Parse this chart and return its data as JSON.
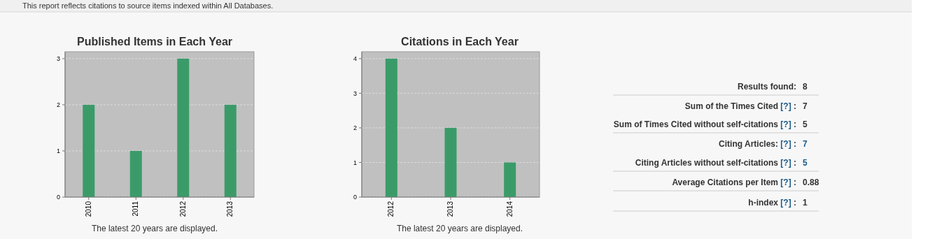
{
  "chart_data": [
    {
      "type": "bar",
      "title": "Published Items in Each Year",
      "categories": [
        "2010",
        "2011",
        "2012",
        "2013"
      ],
      "values": [
        2,
        1,
        3,
        2
      ],
      "color": "#3a9b69",
      "ylim": [
        0,
        3.15
      ],
      "yticks": [
        0,
        1,
        2,
        3
      ],
      "grid": "y",
      "annotations": [
        "The latest 20 years are displayed."
      ]
    },
    {
      "type": "bar",
      "title": "Citations in Each Year",
      "categories": [
        "2012",
        "2013",
        "2014"
      ],
      "values": [
        4,
        2,
        1
      ],
      "color": "#3a9b69",
      "ylim": [
        0,
        4.2
      ],
      "yticks": [
        0,
        1,
        2,
        3,
        4
      ],
      "grid": "y",
      "annotations": [
        "The latest 20 years are displayed."
      ]
    },
    {
      "type": "other",
      "title": "This report reflects citations to source items indexed within All Databases.",
      "annotations": [
        "Results found: 8",
        "Sum of the Times Cited [?] : 7",
        "Sum of Times Cited without self-citations [?] : 5",
        "Citing Articles: [?] : 7",
        "Citing Articles without self-citations [?] : 5",
        "Average Citations per Item [?] : 0.88",
        "h-index [?] : 1"
      ]
    }
  ]
}
